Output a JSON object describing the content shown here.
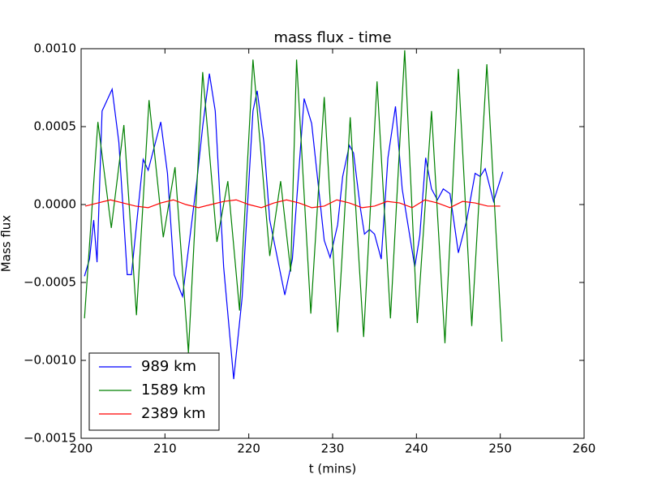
{
  "chart_data": {
    "type": "line",
    "title": "mass flux - time",
    "x_label": "t (mins)",
    "y_label": "Mass flux",
    "xlim": [
      200,
      260
    ],
    "xticks": [
      200,
      210,
      220,
      230,
      240,
      250,
      260
    ],
    "ylim": [
      -0.0015,
      0.001
    ],
    "yticks": [
      {
        "value": -0.0015,
        "label": "−0.0015"
      },
      {
        "value": -0.001,
        "label": "−0.0010"
      },
      {
        "value": -0.0005,
        "label": "−0.0005"
      },
      {
        "value": 0,
        "label": "0.0000"
      },
      {
        "value": 0.0005,
        "label": "0.0005"
      },
      {
        "value": 0.001,
        "label": "0.0010"
      }
    ],
    "legend": "lower left",
    "series": [
      {
        "name": "989 km",
        "color": "#0000ff",
        "x": [
          200.4,
          201.0,
          201.5,
          201.9,
          202.5,
          203.7,
          204.5,
          205.5,
          206.0,
          207.4,
          208.0,
          209.5,
          210.3,
          211.1,
          211.8,
          212.1,
          213.0,
          213.8,
          214.5,
          215.3,
          216.0,
          217.0,
          218.2,
          219.2,
          220.5,
          221.0,
          221.8,
          222.5,
          224.3,
          225.2,
          226.6,
          227.5,
          228.3,
          229.0,
          229.7,
          230.6,
          231.2,
          232.0,
          232.5,
          233.3,
          233.8,
          234.4,
          235.0,
          235.8,
          236.6,
          237.5,
          238.3,
          239.8,
          240.4,
          241.1,
          241.8,
          242.5,
          243.2,
          244.0,
          245.0,
          246.0,
          247.0,
          247.6,
          248.2,
          249.2,
          250.3
        ],
        "values": [
          -0.00046,
          -0.00035,
          -0.0001,
          -0.00037,
          0.0006,
          0.00074,
          0.0004,
          -0.00045,
          -0.00045,
          0.00029,
          0.00022,
          0.00053,
          0.0002,
          -0.00045,
          -0.00055,
          -0.00059,
          -0.0002,
          0.00015,
          0.0005,
          0.00084,
          0.0006,
          -0.0004,
          -0.00112,
          -0.0006,
          0.0006,
          0.00073,
          0.0004,
          -0.0001,
          -0.00058,
          -0.00035,
          0.00068,
          0.00052,
          0.00012,
          -0.00023,
          -0.00034,
          -0.00013,
          0.00018,
          0.00038,
          0.00033,
          -2e-05,
          -0.00019,
          -0.00016,
          -0.00019,
          -0.00035,
          0.0003,
          0.00063,
          0.0001,
          -0.0004,
          -0.0002,
          0.0003,
          0.0001,
          3e-05,
          0.0001,
          7e-05,
          -0.00031,
          -0.0001,
          0.0002,
          0.00018,
          0.00023,
          2e-05,
          0.00021
        ]
      },
      {
        "name": "1589 km",
        "color": "#008000",
        "x": [
          200.4,
          202.0,
          203.6,
          205.1,
          206.6,
          208.1,
          209.8,
          211.2,
          212.8,
          214.5,
          216.2,
          217.5,
          218.9,
          220.5,
          222.5,
          223.8,
          225.0,
          225.7,
          227.4,
          229.0,
          230.6,
          232.1,
          233.7,
          235.3,
          236.9,
          238.6,
          240.1,
          241.8,
          243.4,
          245.0,
          246.6,
          248.4,
          250.2
        ],
        "values": [
          -0.00073,
          0.00053,
          -0.00015,
          0.00051,
          -0.00071,
          0.00067,
          -0.00021,
          0.00024,
          -0.00095,
          0.00085,
          -0.00024,
          0.00015,
          -0.00068,
          0.00093,
          -0.00033,
          0.00015,
          -0.00043,
          0.00093,
          -0.0007,
          0.00069,
          -0.00082,
          0.00056,
          -0.00085,
          0.00079,
          -0.00073,
          0.00099,
          -0.00076,
          0.0006,
          -0.00089,
          0.00087,
          -0.00078,
          0.0009,
          -0.00088
        ]
      },
      {
        "name": "2389 km",
        "color": "#ff0000",
        "x": [
          200.5,
          202,
          203.5,
          205,
          206.5,
          208,
          209.5,
          211,
          212.5,
          214,
          215.5,
          217,
          218.5,
          220,
          221.5,
          223,
          224.5,
          226,
          227.5,
          229,
          230.5,
          232,
          233.5,
          235,
          236.5,
          238,
          239.5,
          241,
          242.5,
          244,
          245.5,
          247,
          248.5,
          250
        ],
        "values": [
          -1e-05,
          1e-05,
          3e-05,
          1e-05,
          -1e-05,
          -2e-05,
          1e-05,
          3e-05,
          0,
          -2e-05,
          0,
          2e-05,
          3e-05,
          0,
          -2e-05,
          1e-05,
          3e-05,
          1e-05,
          -2e-05,
          -1e-05,
          3e-05,
          1e-05,
          -2e-05,
          -1e-05,
          2e-05,
          1e-05,
          -2e-05,
          3e-05,
          1e-05,
          -2e-05,
          2e-05,
          1e-05,
          -1e-05,
          -1e-05
        ]
      }
    ]
  }
}
